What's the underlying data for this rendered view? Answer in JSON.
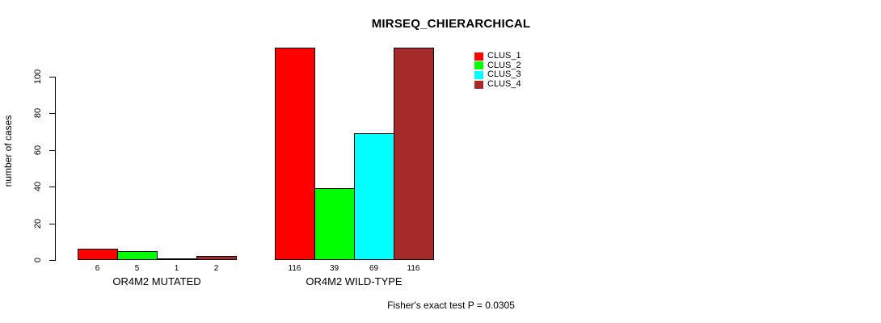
{
  "chart_data": {
    "type": "bar",
    "title": "MIRSEQ_CHIERARCHICAL",
    "ylabel": "number of cases",
    "xlabel": "",
    "annotation": "Fisher's exact test P = 0.0305",
    "grid": false,
    "legend_position": "top-right",
    "ylim": [
      0,
      100
    ],
    "yticks": [
      0,
      20,
      40,
      60,
      80,
      100
    ],
    "categories": [
      "OR4M2 MUTATED",
      "OR4M2 WILD-TYPE"
    ],
    "series": [
      {
        "name": "CLUS_1",
        "color": "#FF0000",
        "values": [
          6,
          116
        ]
      },
      {
        "name": "CLUS_2",
        "color": "#00FF00",
        "values": [
          5,
          39
        ]
      },
      {
        "name": "CLUS_3",
        "color": "#00FFFF",
        "values": [
          1,
          69
        ]
      },
      {
        "name": "CLUS_4",
        "color": "#A52A2A",
        "values": [
          2,
          116
        ]
      }
    ],
    "groups": [
      {
        "label": "OR4M2 MUTATED",
        "values": [
          6,
          5,
          1,
          2
        ]
      },
      {
        "label": "OR4M2 WILD-TYPE",
        "values": [
          116,
          39,
          69,
          116
        ]
      }
    ],
    "bar_value_labels": [
      [
        "6",
        "5",
        "1",
        "2"
      ],
      [
        "116",
        "39",
        "69",
        "116"
      ]
    ]
  }
}
